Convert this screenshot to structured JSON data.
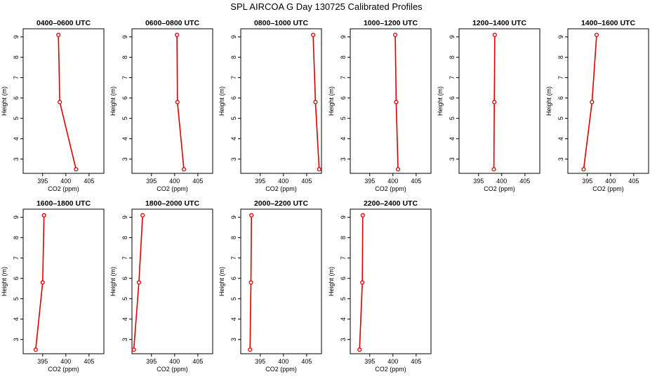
{
  "title": "SPL AIRCOA G  Day 130725  Calibrated Profiles",
  "chart_data": [
    {
      "type": "line",
      "title": "0400–0600 UTC",
      "xlabel": "CO2 (ppm)",
      "ylabel": "Height (m)",
      "xlim": [
        390.8,
        408.2
      ],
      "ylim": [
        2.3,
        9.4
      ],
      "xticks": [
        395,
        400,
        405
      ],
      "yticks": [
        3,
        4,
        5,
        6,
        7,
        8,
        9
      ],
      "color": "#dd0000",
      "points": [
        {
          "x": 402.2,
          "y": 2.5
        },
        {
          "x": 398.7,
          "y": 5.8
        },
        {
          "x": 398.4,
          "y": 9.1
        }
      ]
    },
    {
      "type": "line",
      "title": "0600–0800 UTC",
      "xlabel": "CO2 (ppm)",
      "ylabel": "Height (m)",
      "xlim": [
        390.8,
        408.2
      ],
      "ylim": [
        2.3,
        9.4
      ],
      "xticks": [
        395,
        400,
        405
      ],
      "yticks": [
        3,
        4,
        5,
        6,
        7,
        8,
        9
      ],
      "color": "#dd0000",
      "points": [
        {
          "x": 402.0,
          "y": 2.5
        },
        {
          "x": 400.6,
          "y": 5.8
        },
        {
          "x": 400.5,
          "y": 9.1
        }
      ]
    },
    {
      "type": "line",
      "title": "0800–1000 UTC",
      "xlabel": "CO2 (ppm)",
      "ylabel": "Height (m)",
      "xlim": [
        390.8,
        408.2
      ],
      "ylim": [
        2.3,
        9.4
      ],
      "xticks": [
        395,
        400,
        405
      ],
      "yticks": [
        3,
        4,
        5,
        6,
        7,
        8,
        9
      ],
      "color": "#dd0000",
      "points": [
        {
          "x": 407.7,
          "y": 2.5
        },
        {
          "x": 406.9,
          "y": 5.8
        },
        {
          "x": 406.4,
          "y": 9.1
        }
      ]
    },
    {
      "type": "line",
      "title": "1000–1200 UTC",
      "xlabel": "CO2 (ppm)",
      "ylabel": "Height (m)",
      "xlim": [
        390.8,
        408.2
      ],
      "ylim": [
        2.3,
        9.4
      ],
      "xticks": [
        395,
        400,
        405
      ],
      "yticks": [
        3,
        4,
        5,
        6,
        7,
        8,
        9
      ],
      "color": "#dd0000",
      "points": [
        {
          "x": 401.1,
          "y": 2.5
        },
        {
          "x": 400.7,
          "y": 5.8
        },
        {
          "x": 400.5,
          "y": 9.1
        }
      ]
    },
    {
      "type": "line",
      "title": "1200–1400 UTC",
      "xlabel": "CO2 (ppm)",
      "ylabel": "Height (m)",
      "xlim": [
        390.8,
        408.2
      ],
      "ylim": [
        2.3,
        9.4
      ],
      "xticks": [
        395,
        400,
        405
      ],
      "yticks": [
        3,
        4,
        5,
        6,
        7,
        8,
        9
      ],
      "color": "#dd0000",
      "points": [
        {
          "x": 398.3,
          "y": 2.5
        },
        {
          "x": 398.4,
          "y": 5.8
        },
        {
          "x": 398.5,
          "y": 9.1
        }
      ]
    },
    {
      "type": "line",
      "title": "1400–1600 UTC",
      "xlabel": "CO2 (ppm)",
      "ylabel": "Height (m)",
      "xlim": [
        390.8,
        408.2
      ],
      "ylim": [
        2.3,
        9.4
      ],
      "xticks": [
        395,
        400,
        405
      ],
      "yticks": [
        3,
        4,
        5,
        6,
        7,
        8,
        9
      ],
      "color": "#dd0000",
      "points": [
        {
          "x": 394.2,
          "y": 2.5
        },
        {
          "x": 396.0,
          "y": 5.8
        },
        {
          "x": 397.0,
          "y": 9.1
        }
      ]
    },
    {
      "type": "line",
      "title": "1600–1800 UTC",
      "xlabel": "CO2 (ppm)",
      "ylabel": "Height (m)",
      "xlim": [
        390.8,
        408.2
      ],
      "ylim": [
        2.3,
        9.4
      ],
      "xticks": [
        395,
        400,
        405
      ],
      "yticks": [
        3,
        4,
        5,
        6,
        7,
        8,
        9
      ],
      "color": "#dd0000",
      "points": [
        {
          "x": 393.5,
          "y": 2.5
        },
        {
          "x": 395.0,
          "y": 5.8
        },
        {
          "x": 395.3,
          "y": 9.1
        }
      ]
    },
    {
      "type": "line",
      "title": "1800–2000 UTC",
      "xlabel": "CO2 (ppm)",
      "ylabel": "Height (m)",
      "xlim": [
        390.8,
        408.2
      ],
      "ylim": [
        2.3,
        9.4
      ],
      "xticks": [
        395,
        400,
        405
      ],
      "yticks": [
        3,
        4,
        5,
        6,
        7,
        8,
        9
      ],
      "color": "#dd0000",
      "points": [
        {
          "x": 391.2,
          "y": 2.5
        },
        {
          "x": 392.3,
          "y": 5.8
        },
        {
          "x": 393.1,
          "y": 9.1
        }
      ]
    },
    {
      "type": "line",
      "title": "2000–2200 UTC",
      "xlabel": "CO2 (ppm)",
      "ylabel": "Height (m)",
      "xlim": [
        390.8,
        408.2
      ],
      "ylim": [
        2.3,
        9.4
      ],
      "xticks": [
        395,
        400,
        405
      ],
      "yticks": [
        3,
        4,
        5,
        6,
        7,
        8,
        9
      ],
      "color": "#dd0000",
      "points": [
        {
          "x": 392.8,
          "y": 2.5
        },
        {
          "x": 393.0,
          "y": 5.8
        },
        {
          "x": 393.1,
          "y": 9.1
        }
      ]
    },
    {
      "type": "line",
      "title": "2200–2400 UTC",
      "xlabel": "CO2 (ppm)",
      "ylabel": "Height (m)",
      "xlim": [
        390.8,
        408.2
      ],
      "ylim": [
        2.3,
        9.4
      ],
      "xticks": [
        395,
        400,
        405
      ],
      "yticks": [
        3,
        4,
        5,
        6,
        7,
        8,
        9
      ],
      "color": "#dd0000",
      "points": [
        {
          "x": 392.8,
          "y": 2.5
        },
        {
          "x": 393.4,
          "y": 5.8
        },
        {
          "x": 393.5,
          "y": 9.1
        }
      ]
    }
  ]
}
